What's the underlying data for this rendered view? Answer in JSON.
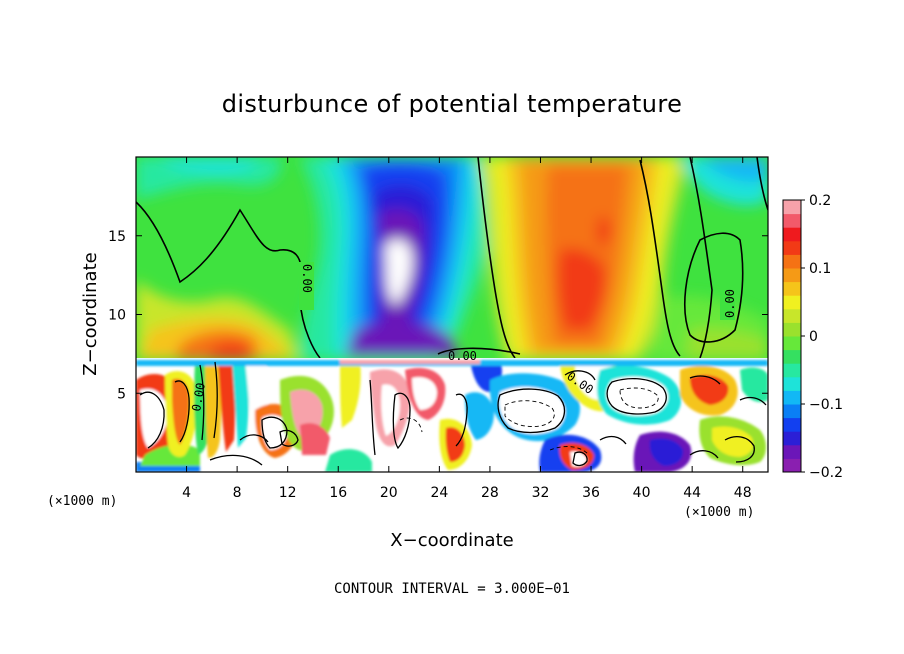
{
  "chart_data": {
    "type": "heatmap",
    "title": "disturbunce of potential temperature",
    "xlabel": "X−coordinate",
    "ylabel": "Z−coordinate",
    "x_unit_left": "(×1000 m)",
    "x_unit_right": "(×1000 m)",
    "xlim": [
      0,
      50
    ],
    "ylim": [
      0,
      20
    ],
    "x_ticks": [
      "4",
      "8",
      "12",
      "16",
      "20",
      "24",
      "28",
      "32",
      "36",
      "40",
      "44",
      "48"
    ],
    "y_ticks": [
      "5",
      "10",
      "15"
    ],
    "colorbar": {
      "range": [
        -0.2,
        0.2
      ],
      "tick_labels": [
        "0.2",
        "0.1",
        "0",
        "−0.1",
        "−0.2"
      ],
      "tick_values": [
        0.2,
        0.1,
        0,
        -0.1,
        -0.2
      ],
      "colors": [
        "#8a1fb0",
        "#6b16b8",
        "#2b1fd6",
        "#1240f0",
        "#0a7ff5",
        "#12b8f5",
        "#1ee3d9",
        "#27e8a0",
        "#35e060",
        "#66e83a",
        "#9ae12d",
        "#c8e62a",
        "#f0f020",
        "#f5c41a",
        "#f59a16",
        "#f57214",
        "#f23a16",
        "#ef1a1e",
        "#f25a6a",
        "#f7a2aa"
      ]
    },
    "contour_labels": [
      "0.00",
      "0.00",
      "0.00",
      "0.00",
      "0.00"
    ],
    "contour_interval": "CONTOUR INTERVAL = 3.000E−01"
  }
}
